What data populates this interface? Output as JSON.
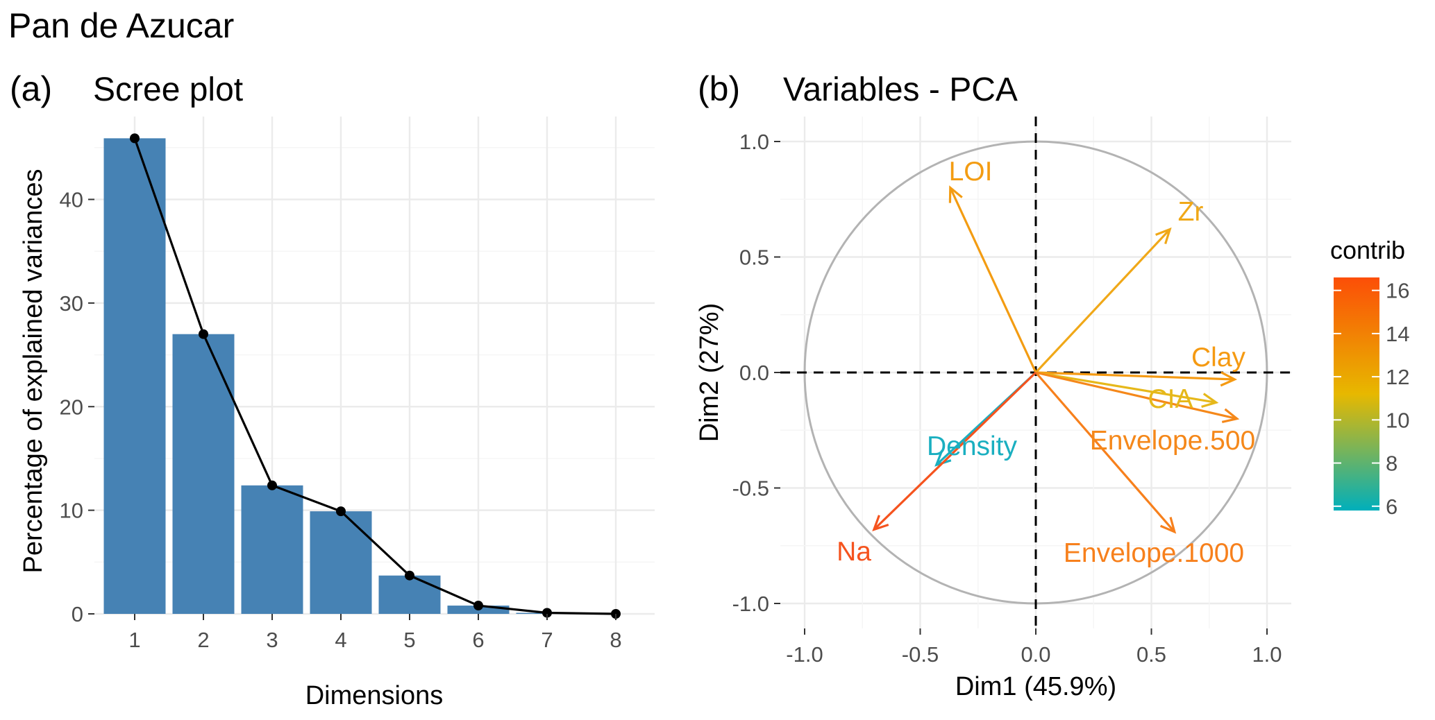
{
  "figure_title": "Pan de Azucar",
  "chart_data": [
    {
      "panel_tag": "(a)",
      "type": "bar",
      "title": "Scree plot",
      "xlabel": "Dimensions",
      "ylabel": "Percentage of explained variances",
      "categories": [
        "1",
        "2",
        "3",
        "4",
        "5",
        "6",
        "7",
        "8"
      ],
      "values": [
        45.9,
        27.0,
        12.4,
        9.9,
        3.7,
        0.8,
        0.1,
        0.0
      ],
      "line_overlay": true,
      "ylim": [
        0,
        48
      ],
      "yticks": [
        0,
        10,
        20,
        30,
        40
      ],
      "grid": true,
      "bar_color": "#4682B4",
      "line_color": "#000000"
    },
    {
      "panel_tag": "(b)",
      "type": "scatter",
      "subtype": "pca-variable-correlation-circle",
      "title": "Variables - PCA",
      "xlabel": "Dim1 (45.9%)",
      "ylabel": "Dim2 (27%)",
      "xlim": [
        -1.0,
        1.0
      ],
      "ylim": [
        -1.0,
        1.0
      ],
      "xticks": [
        "-1.0",
        "-0.5",
        "0.0",
        "0.5",
        "1.0"
      ],
      "yticks": [
        "-1.0",
        "-0.5",
        "0.0",
        "0.5",
        "1.0"
      ],
      "grid": true,
      "variables": [
        {
          "name": "LOI",
          "x": -0.37,
          "y": 0.8,
          "contrib": 13.2,
          "color": "#F39C12"
        },
        {
          "name": "Zr",
          "x": 0.58,
          "y": 0.62,
          "contrib": 12.5,
          "color": "#F0A818"
        },
        {
          "name": "Clay",
          "x": 0.86,
          "y": -0.03,
          "contrib": 13.5,
          "color": "#F59A12"
        },
        {
          "name": "CIA",
          "x": 0.78,
          "y": -0.13,
          "contrib": 11.6,
          "color": "#E6B81A"
        },
        {
          "name": "Envelope.500",
          "x": 0.87,
          "y": -0.2,
          "contrib": 14.3,
          "color": "#F5881A"
        },
        {
          "name": "Envelope.1000",
          "x": 0.6,
          "y": -0.69,
          "contrib": 14.6,
          "color": "#F7801C"
        },
        {
          "name": "Density",
          "x": -0.43,
          "y": -0.4,
          "contrib": 6.3,
          "color": "#1AAFC0"
        },
        {
          "name": "Na",
          "x": -0.7,
          "y": -0.68,
          "contrib": 16.3,
          "color": "#F5531E"
        }
      ],
      "legend": {
        "title": "contrib",
        "position": "right",
        "ticks": [
          "6",
          "8",
          "10",
          "12",
          "14",
          "16"
        ],
        "range": [
          5.8,
          16.6
        ],
        "colors": [
          "#00AFBB",
          "#E7B800",
          "#FC4E07"
        ]
      }
    }
  ]
}
